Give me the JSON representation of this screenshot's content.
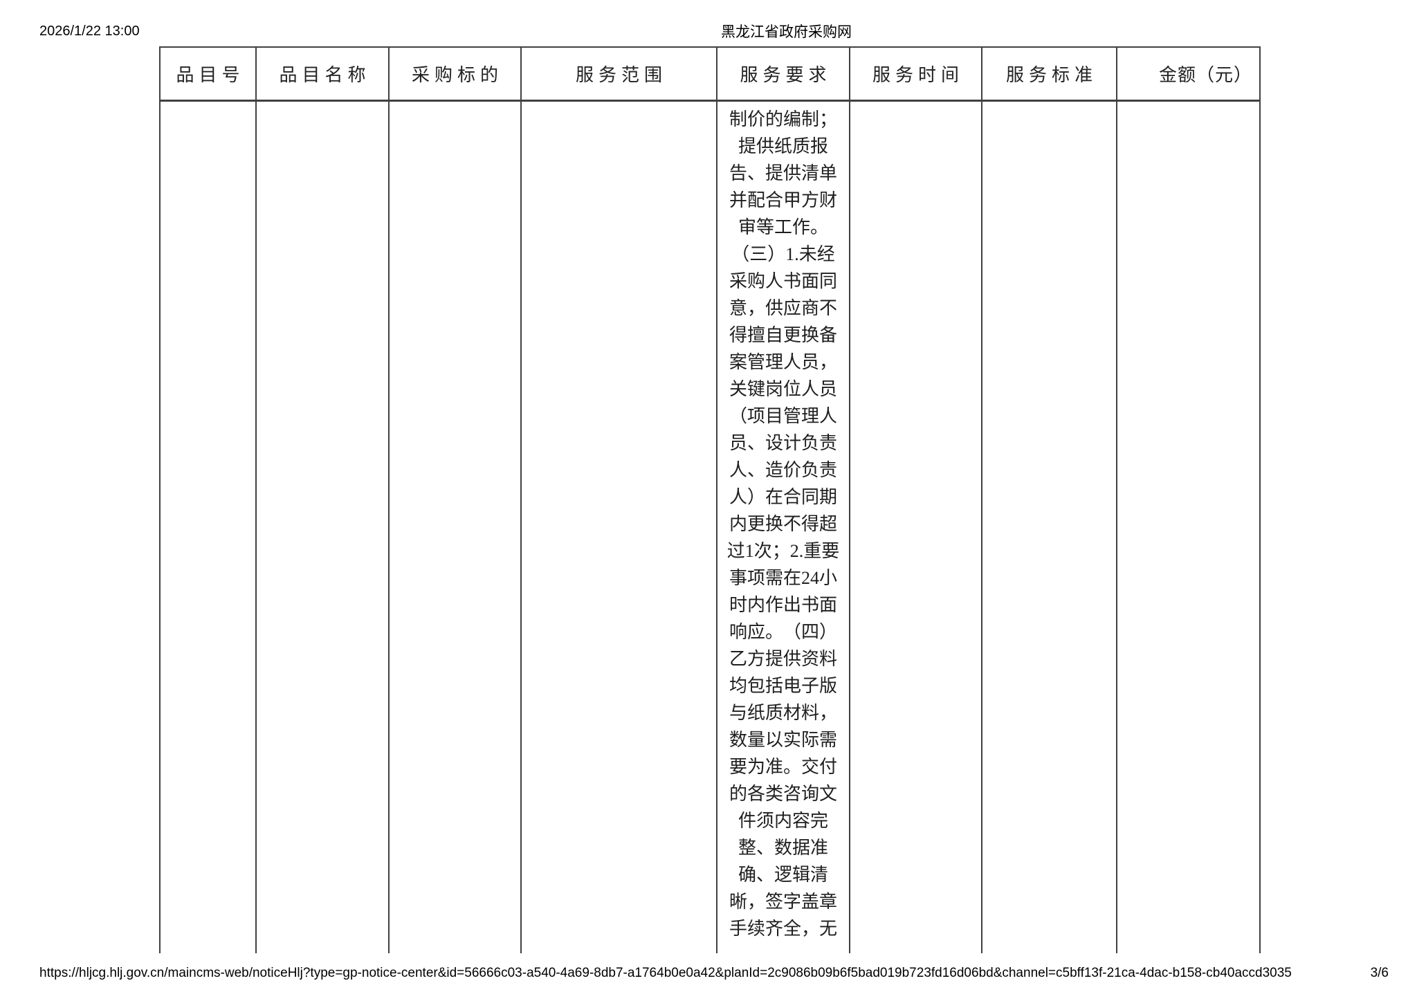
{
  "page_header": {
    "date": "2026/1/22 13:00",
    "title": "黑龙江省政府采购网"
  },
  "table": {
    "headers": [
      "品目号",
      "品目名称",
      "采购标的",
      "服务范围",
      "服务要求",
      "服务时间",
      "服务标准",
      "金额（元）"
    ],
    "body_row": {
      "item_number": "",
      "item_name": "",
      "procurement_subject": "",
      "service_scope": "",
      "service_requirements": "制价的编制；\n提供纸质报\n告、提供清单\n并配合甲方财\n审等工作。\n（三）1.未经\n采购人书面同\n意，供应商不\n得擅自更换备\n案管理人员，\n关键岗位人员\n（项目管理人\n员、设计负责\n人、造价负责\n人）在合同期\n内更换不得超\n过1次；2.重要\n事项需在24小\n时内作出书面\n响应。　（四）\n乙方提供资料\n均包括电子版\n与纸质材料，\n数量以实际需\n要为准。交付\n的各类咨询文\n件须内容完\n整、数据准\n确、逻辑清\n晰，签字盖章\n手续齐全，无",
      "service_time": "",
      "service_standard": "",
      "amount": ""
    }
  },
  "page_footer": {
    "url": "https://hljcg.hlj.gov.cn/maincms-web/noticeHlj?type=gp-notice-center&id=56666c03-a540-4a69-8db7-a1764b0e0a42&planId=2c9086b09b6f5bad019b723fd16d06bd&channel=c5bff13f-21ca-4dac-b158-cb40accd3035",
    "page_indicator": "3/6"
  },
  "colors": {
    "table_border": "#404040",
    "text": "#1a1a1a",
    "background": "#ffffff"
  }
}
